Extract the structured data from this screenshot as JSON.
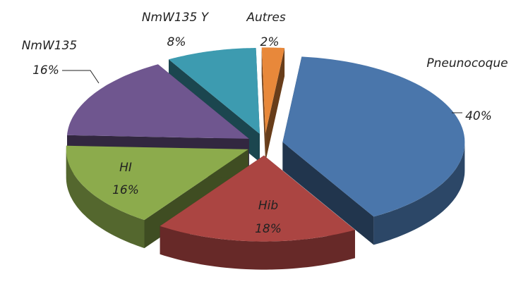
{
  "chart_data": {
    "type": "pie",
    "categories": [
      "Pneunocoque",
      "Hib",
      "HI",
      "NmW135",
      "NmW135 Y",
      "Autres"
    ],
    "values": [
      40,
      18,
      16,
      16,
      8,
      2
    ],
    "value_labels": [
      "40%",
      "18%",
      "16%",
      "16%",
      "8%",
      "2%"
    ],
    "colors": [
      "#4a76ab",
      "#ab4542",
      "#8cab4c",
      "#6f568f",
      "#3d9bb0",
      "#e8883a"
    ]
  }
}
